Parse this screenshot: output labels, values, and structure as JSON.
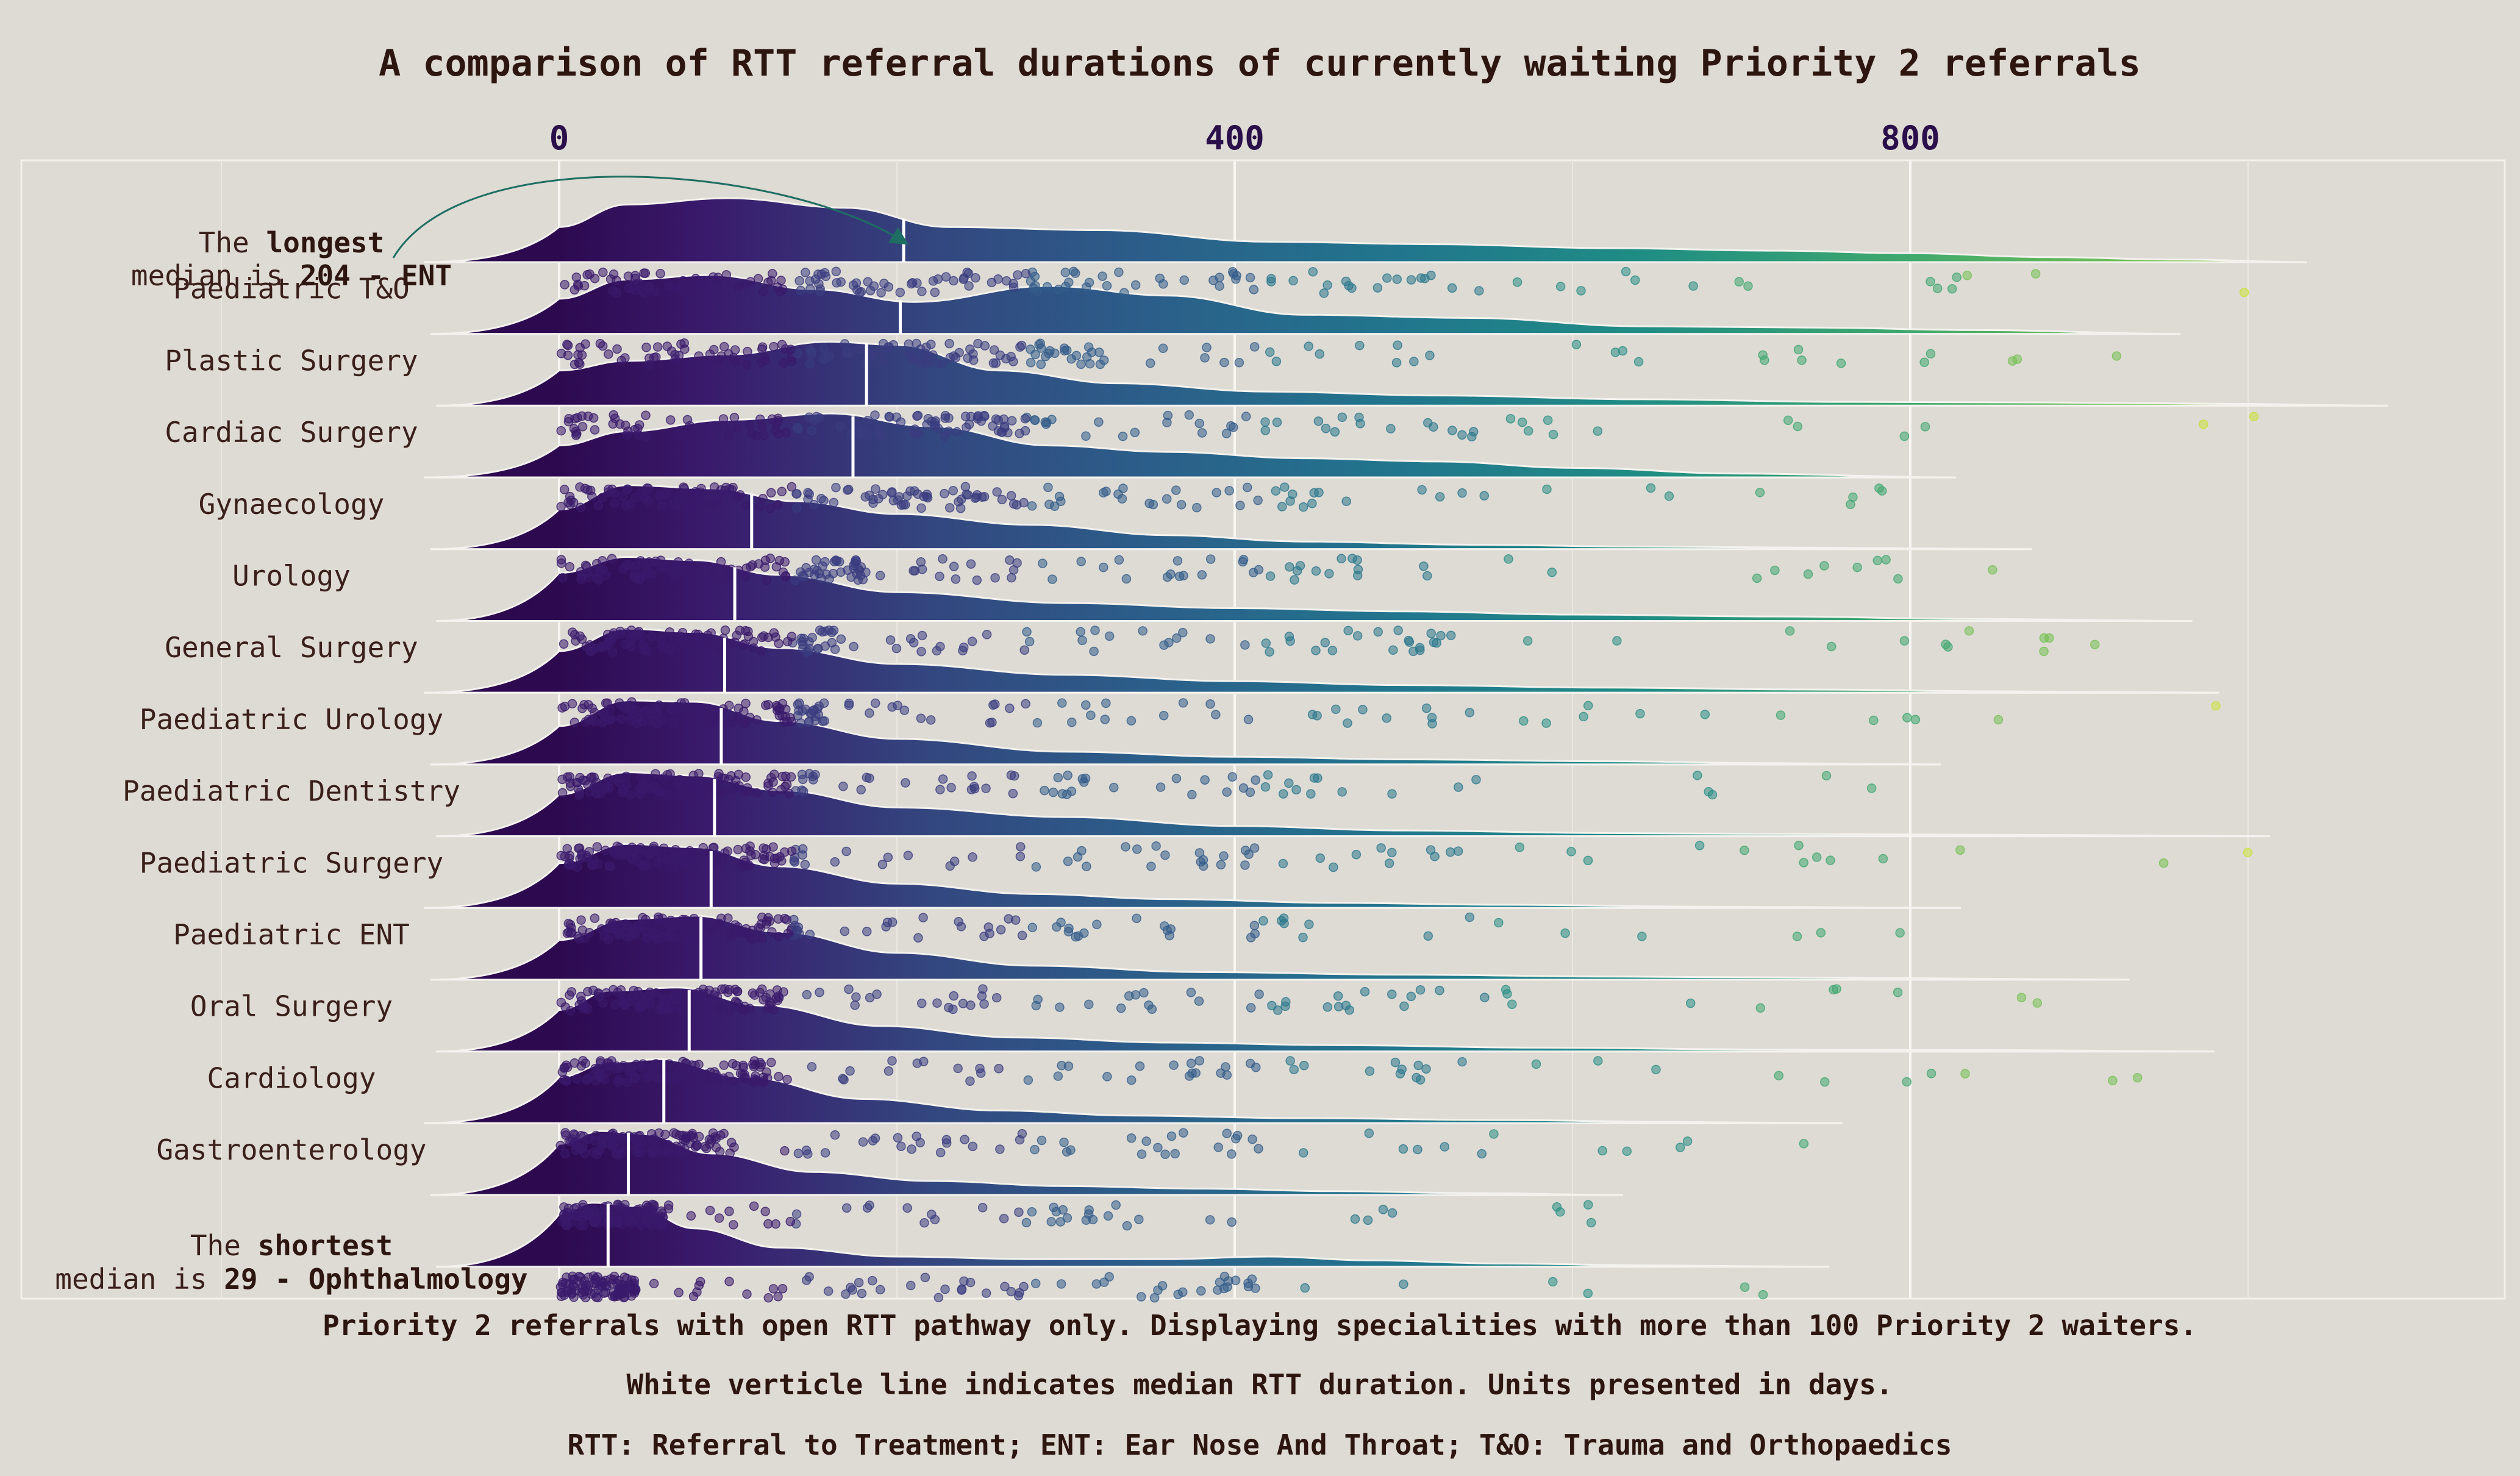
{
  "chart_data": {
    "type": "raincloud",
    "title": "A comparison of RTT referral durations of currently waiting Priority 2 referrals",
    "x_ticks": [
      0,
      400,
      800
    ],
    "xlim": [
      -90,
      1090
    ],
    "grid": true,
    "orientation": "horizontal",
    "color_scale": "viridis by referral duration",
    "median_line_color": "#ffffff",
    "categories": [
      {
        "label": "ENT",
        "median": 204,
        "max": 1035,
        "density": [
          [
            0,
            0.55
          ],
          [
            40,
            0.9
          ],
          [
            100,
            1.0
          ],
          [
            170,
            0.85
          ],
          [
            230,
            0.55
          ],
          [
            320,
            0.5
          ],
          [
            420,
            0.32
          ],
          [
            520,
            0.28
          ],
          [
            620,
            0.22
          ],
          [
            720,
            0.18
          ],
          [
            800,
            0.14
          ],
          [
            880,
            0.08
          ],
          [
            960,
            0.04
          ],
          [
            1035,
            0.0
          ]
        ]
      },
      {
        "label": "Paediatric T&O",
        "median": 202,
        "max": 960,
        "density": [
          [
            0,
            0.55
          ],
          [
            40,
            0.85
          ],
          [
            90,
            0.92
          ],
          [
            150,
            0.7
          ],
          [
            210,
            0.5
          ],
          [
            290,
            0.75
          ],
          [
            360,
            0.6
          ],
          [
            440,
            0.3
          ],
          [
            540,
            0.25
          ],
          [
            640,
            0.12
          ],
          [
            740,
            0.1
          ],
          [
            840,
            0.06
          ],
          [
            960,
            0.0
          ]
        ]
      },
      {
        "label": "Plastic Surgery",
        "median": 182,
        "max": 1083,
        "density": [
          [
            0,
            0.55
          ],
          [
            40,
            0.7
          ],
          [
            100,
            0.8
          ],
          [
            160,
            1.0
          ],
          [
            200,
            0.95
          ],
          [
            260,
            0.55
          ],
          [
            330,
            0.35
          ],
          [
            420,
            0.22
          ],
          [
            520,
            0.16
          ],
          [
            640,
            0.1
          ],
          [
            760,
            0.06
          ],
          [
            880,
            0.05
          ],
          [
            980,
            0.03
          ],
          [
            1083,
            0.0
          ]
        ]
      },
      {
        "label": "Cardiac Surgery",
        "median": 174,
        "max": 827,
        "density": [
          [
            0,
            0.5
          ],
          [
            40,
            0.72
          ],
          [
            100,
            0.9
          ],
          [
            160,
            1.0
          ],
          [
            220,
            0.8
          ],
          [
            290,
            0.5
          ],
          [
            360,
            0.4
          ],
          [
            440,
            0.3
          ],
          [
            520,
            0.25
          ],
          [
            600,
            0.15
          ],
          [
            700,
            0.06
          ],
          [
            827,
            0.0
          ]
        ]
      },
      {
        "label": "Gynaecology",
        "median": 114,
        "max": 872,
        "density": [
          [
            0,
            0.62
          ],
          [
            40,
            1.0
          ],
          [
            90,
            0.95
          ],
          [
            140,
            0.75
          ],
          [
            200,
            0.55
          ],
          [
            280,
            0.38
          ],
          [
            360,
            0.22
          ],
          [
            440,
            0.12
          ],
          [
            540,
            0.07
          ],
          [
            640,
            0.04
          ],
          [
            760,
            0.02
          ],
          [
            872,
            0.0
          ]
        ]
      },
      {
        "label": "Urology",
        "median": 104,
        "max": 967,
        "density": [
          [
            0,
            0.75
          ],
          [
            40,
            1.0
          ],
          [
            80,
            0.95
          ],
          [
            130,
            0.72
          ],
          [
            200,
            0.45
          ],
          [
            300,
            0.28
          ],
          [
            400,
            0.2
          ],
          [
            500,
            0.15
          ],
          [
            600,
            0.1
          ],
          [
            720,
            0.07
          ],
          [
            840,
            0.03
          ],
          [
            967,
            0.0
          ]
        ]
      },
      {
        "label": "General Surgery",
        "median": 98,
        "max": 983,
        "density": [
          [
            0,
            0.65
          ],
          [
            40,
            1.0
          ],
          [
            80,
            0.95
          ],
          [
            130,
            0.7
          ],
          [
            200,
            0.45
          ],
          [
            300,
            0.28
          ],
          [
            400,
            0.18
          ],
          [
            500,
            0.12
          ],
          [
            620,
            0.08
          ],
          [
            740,
            0.05
          ],
          [
            860,
            0.02
          ],
          [
            983,
            0.0
          ]
        ]
      },
      {
        "label": "Paediatric Urology",
        "median": 96,
        "max": 818,
        "density": [
          [
            0,
            0.6
          ],
          [
            40,
            1.0
          ],
          [
            80,
            0.98
          ],
          [
            130,
            0.68
          ],
          [
            200,
            0.4
          ],
          [
            300,
            0.2
          ],
          [
            400,
            0.12
          ],
          [
            500,
            0.08
          ],
          [
            620,
            0.05
          ],
          [
            720,
            0.02
          ],
          [
            818,
            0.0
          ]
        ]
      },
      {
        "label": "Paediatric Dentistry",
        "median": 92,
        "max": 1013,
        "density": [
          [
            0,
            0.65
          ],
          [
            40,
            1.0
          ],
          [
            80,
            0.95
          ],
          [
            130,
            0.72
          ],
          [
            200,
            0.45
          ],
          [
            300,
            0.3
          ],
          [
            400,
            0.16
          ],
          [
            500,
            0.09
          ],
          [
            620,
            0.05
          ],
          [
            760,
            0.03
          ],
          [
            880,
            0.02
          ],
          [
            1013,
            0.0
          ]
        ]
      },
      {
        "label": "Paediatric Surgery",
        "median": 90,
        "max": 830,
        "density": [
          [
            0,
            0.7
          ],
          [
            40,
            1.0
          ],
          [
            80,
            0.95
          ],
          [
            130,
            0.65
          ],
          [
            200,
            0.38
          ],
          [
            280,
            0.22
          ],
          [
            360,
            0.14
          ],
          [
            460,
            0.08
          ],
          [
            560,
            0.05
          ],
          [
            680,
            0.02
          ],
          [
            830,
            0.0
          ]
        ]
      },
      {
        "label": "Paediatric ENT",
        "median": 84,
        "max": 930,
        "density": [
          [
            0,
            0.62
          ],
          [
            40,
            0.95
          ],
          [
            80,
            1.0
          ],
          [
            130,
            0.75
          ],
          [
            200,
            0.42
          ],
          [
            280,
            0.22
          ],
          [
            380,
            0.12
          ],
          [
            500,
            0.08
          ],
          [
            620,
            0.05
          ],
          [
            760,
            0.03
          ],
          [
            930,
            0.0
          ]
        ]
      },
      {
        "label": "Oral Surgery",
        "median": 77,
        "max": 980,
        "density": [
          [
            0,
            0.65
          ],
          [
            30,
            0.95
          ],
          [
            70,
            1.0
          ],
          [
            120,
            0.72
          ],
          [
            190,
            0.4
          ],
          [
            270,
            0.22
          ],
          [
            360,
            0.14
          ],
          [
            460,
            0.1
          ],
          [
            580,
            0.06
          ],
          [
            720,
            0.03
          ],
          [
            860,
            0.02
          ],
          [
            980,
            0.0
          ]
        ]
      },
      {
        "label": "Cardiology",
        "median": 62,
        "max": 760,
        "density": [
          [
            0,
            0.72
          ],
          [
            30,
            0.95
          ],
          [
            60,
            1.0
          ],
          [
            110,
            0.72
          ],
          [
            180,
            0.38
          ],
          [
            260,
            0.2
          ],
          [
            340,
            0.12
          ],
          [
            440,
            0.08
          ],
          [
            560,
            0.05
          ],
          [
            660,
            0.02
          ],
          [
            760,
            0.0
          ]
        ]
      },
      {
        "label": "Gastroenterology",
        "median": 41,
        "max": 630,
        "density": [
          [
            0,
            0.8
          ],
          [
            25,
            1.0
          ],
          [
            50,
            0.95
          ],
          [
            90,
            0.65
          ],
          [
            150,
            0.36
          ],
          [
            220,
            0.22
          ],
          [
            300,
            0.14
          ],
          [
            380,
            0.1
          ],
          [
            460,
            0.06
          ],
          [
            540,
            0.03
          ],
          [
            630,
            0.0
          ]
        ]
      },
      {
        "label": "Ophthalmology",
        "median": 29,
        "max": 752,
        "density": [
          [
            0,
            0.82
          ],
          [
            20,
            1.0
          ],
          [
            45,
            0.95
          ],
          [
            80,
            0.6
          ],
          [
            130,
            0.3
          ],
          [
            200,
            0.16
          ],
          [
            280,
            0.12
          ],
          [
            360,
            0.12
          ],
          [
            420,
            0.16
          ],
          [
            480,
            0.1
          ],
          [
            560,
            0.05
          ],
          [
            650,
            0.02
          ],
          [
            752,
            0.0
          ]
        ]
      }
    ],
    "annotations": {
      "longest_prefix": "The ",
      "longest_bold": "longest",
      "longest_line2": "median is ",
      "longest_value": "204 - ENT",
      "shortest_prefix": "The ",
      "shortest_bold": "shortest",
      "shortest_line2": "median is ",
      "shortest_value": "29 - Ophthalmology"
    },
    "captions": [
      "Priority 2 referrals with open RTT pathway only. Displaying specialities with more than 100 Priority 2 waiters.",
      "White verticle line indicates median RTT duration. Units presented in days.",
      "RTT: Referral to Treatment; ENT: Ear Nose And Throat; T&O: Trauma and Orthopaedics"
    ]
  }
}
